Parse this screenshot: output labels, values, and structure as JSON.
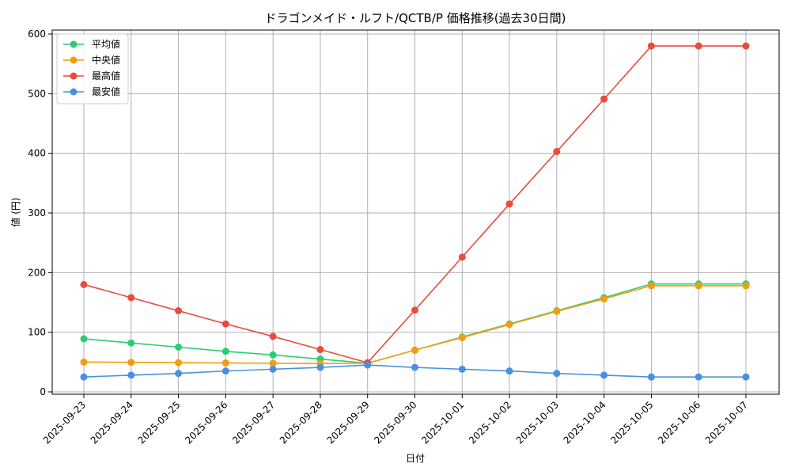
{
  "chart_data": {
    "type": "line",
    "title": "ドラゴンメイド・ルフト/QCTB/P 価格推移(過去30日間)",
    "xlabel": "日付",
    "ylabel": "値 (円)",
    "categories": [
      "2025-09-23",
      "2025-09-24",
      "2025-09-25",
      "2025-09-26",
      "2025-09-27",
      "2025-09-28",
      "2025-09-29",
      "2025-09-30",
      "2025-10-01",
      "2025-10-02",
      "2025-10-03",
      "2025-10-04",
      "2025-10-05",
      "2025-10-06",
      "2025-10-07"
    ],
    "ylim": [
      0,
      600
    ],
    "yticks": [
      0,
      100,
      200,
      300,
      400,
      500,
      600
    ],
    "grid": true,
    "legend_position": "top-left",
    "series": [
      {
        "name": "平均値",
        "color": "#2ecc71",
        "values": [
          89,
          82,
          75,
          68,
          62,
          55,
          48,
          70,
          92,
          114,
          136,
          158,
          181,
          181,
          181
        ]
      },
      {
        "name": "中央値",
        "color": "#f39c12",
        "values": [
          50,
          49.5,
          49,
          48.5,
          48,
          47.5,
          48,
          70,
          91,
          113,
          135,
          156,
          178,
          178,
          178
        ]
      },
      {
        "name": "最高値",
        "color": "#e74c3c",
        "values": [
          180,
          158,
          136,
          114,
          93,
          71,
          49,
          137,
          226,
          315,
          403,
          491,
          580,
          580,
          580
        ]
      },
      {
        "name": "最安値",
        "color": "#4a90e2",
        "values": [
          25,
          28,
          31,
          35,
          38,
          41,
          45,
          41,
          38,
          35,
          31,
          28,
          25,
          25,
          25
        ]
      }
    ]
  }
}
